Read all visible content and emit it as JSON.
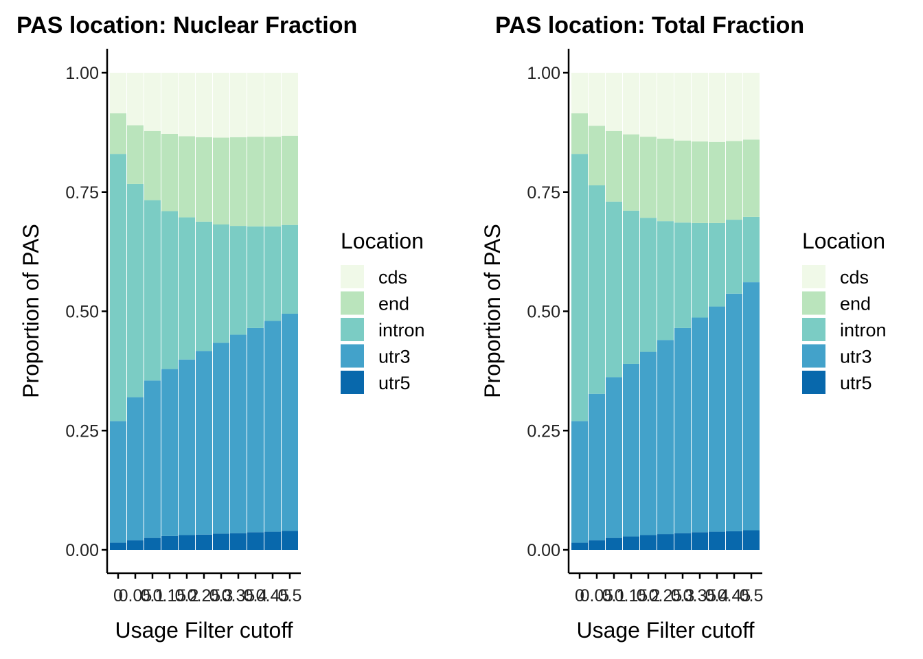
{
  "colors": {
    "cds": "#F0F9E8",
    "end": "#BAE4BC",
    "intron": "#7BCCC4",
    "utr3": "#43A2CA",
    "utr5": "#0868AC"
  },
  "chart_data": [
    {
      "type": "bar",
      "stacked": true,
      "title": "PAS location: Nuclear Fraction",
      "xlabel": "Usage Filter cutoff",
      "ylabel": "Proportion of PAS",
      "ylim": [
        0,
        1
      ],
      "yticks": [
        "0.00",
        "0.25",
        "0.50",
        "0.75",
        "1.00"
      ],
      "categories": [
        "0",
        "0.05",
        "0.1",
        "0.15",
        "0.2",
        "0.25",
        "0.3",
        "0.35",
        "0.4",
        "0.45",
        "0.5"
      ],
      "legend": {
        "title": "Location",
        "position": "right"
      },
      "series": [
        {
          "name": "utr5",
          "values": [
            0.015,
            0.02,
            0.025,
            0.029,
            0.031,
            0.032,
            0.034,
            0.035,
            0.037,
            0.038,
            0.04
          ]
        },
        {
          "name": "utr3",
          "values": [
            0.255,
            0.3,
            0.33,
            0.35,
            0.368,
            0.385,
            0.4,
            0.416,
            0.428,
            0.442,
            0.455
          ]
        },
        {
          "name": "intron",
          "values": [
            0.56,
            0.447,
            0.378,
            0.331,
            0.298,
            0.271,
            0.248,
            0.228,
            0.213,
            0.198,
            0.186
          ]
        },
        {
          "name": "end",
          "values": [
            0.085,
            0.123,
            0.145,
            0.162,
            0.17,
            0.177,
            0.182,
            0.186,
            0.188,
            0.188,
            0.187
          ]
        },
        {
          "name": "cds",
          "values": [
            0.085,
            0.11,
            0.122,
            0.128,
            0.133,
            0.135,
            0.136,
            0.135,
            0.134,
            0.134,
            0.132
          ]
        }
      ]
    },
    {
      "type": "bar",
      "stacked": true,
      "title": "PAS location: Total Fraction",
      "xlabel": "Usage Filter cutoff",
      "ylabel": "Proportion of PAS",
      "ylim": [
        0,
        1
      ],
      "yticks": [
        "0.00",
        "0.25",
        "0.50",
        "0.75",
        "1.00"
      ],
      "categories": [
        "0",
        "0.05",
        "0.1",
        "0.15",
        "0.2",
        "0.25",
        "0.3",
        "0.35",
        "0.4",
        "0.45",
        "0.5"
      ],
      "legend": {
        "title": "Location",
        "position": "right"
      },
      "series": [
        {
          "name": "utr5",
          "values": [
            0.015,
            0.02,
            0.025,
            0.028,
            0.031,
            0.033,
            0.035,
            0.037,
            0.038,
            0.039,
            0.041
          ]
        },
        {
          "name": "utr3",
          "values": [
            0.255,
            0.307,
            0.337,
            0.362,
            0.384,
            0.407,
            0.43,
            0.45,
            0.472,
            0.498,
            0.52
          ]
        },
        {
          "name": "intron",
          "values": [
            0.56,
            0.437,
            0.368,
            0.321,
            0.281,
            0.249,
            0.221,
            0.198,
            0.175,
            0.155,
            0.137
          ]
        },
        {
          "name": "end",
          "values": [
            0.085,
            0.125,
            0.148,
            0.16,
            0.17,
            0.173,
            0.172,
            0.171,
            0.17,
            0.165,
            0.162
          ]
        },
        {
          "name": "cds",
          "values": [
            0.085,
            0.111,
            0.122,
            0.129,
            0.134,
            0.138,
            0.142,
            0.144,
            0.145,
            0.143,
            0.14
          ]
        }
      ]
    }
  ]
}
